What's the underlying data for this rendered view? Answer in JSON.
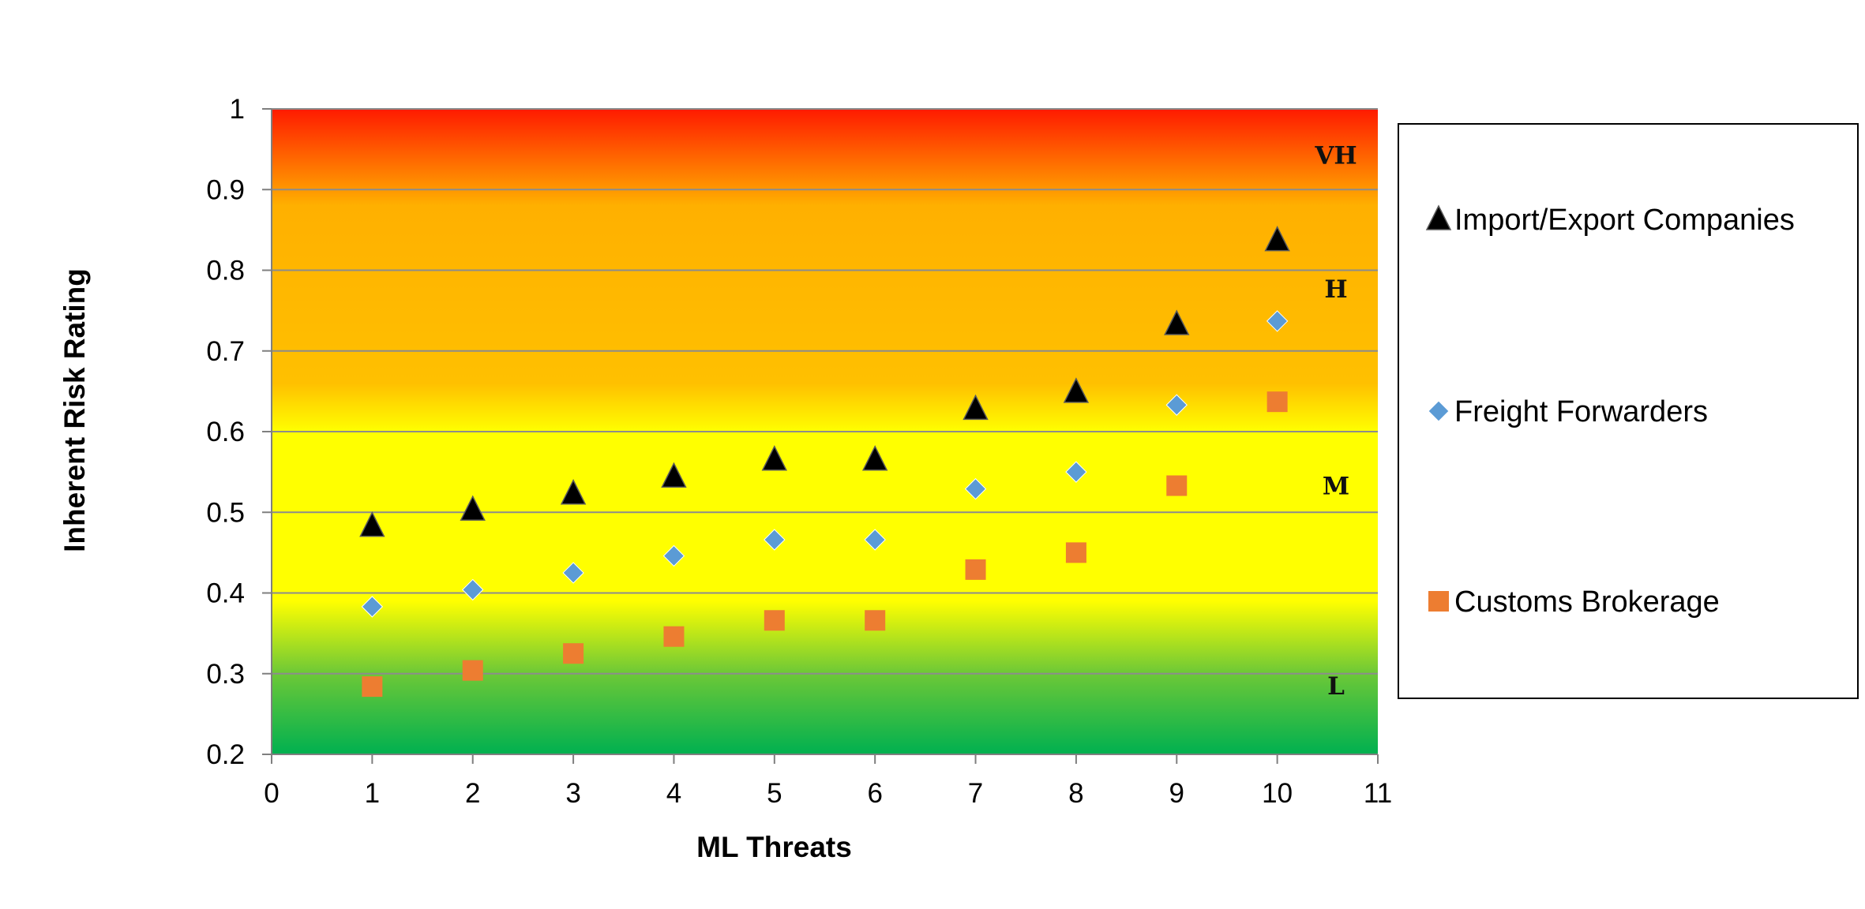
{
  "chart_data": {
    "type": "scatter",
    "title": "",
    "xlabel": "ML Threats",
    "ylabel": "Inherent Risk Rating",
    "xlim": [
      0,
      11
    ],
    "ylim": [
      0.2,
      1
    ],
    "x_ticks": [
      0,
      1,
      2,
      3,
      4,
      5,
      6,
      7,
      8,
      9,
      10,
      11
    ],
    "y_ticks": [
      0.2,
      0.3,
      0.4,
      0.5,
      0.6,
      0.7,
      0.8,
      0.9,
      1
    ],
    "y_tick_labels": [
      "0.2",
      "0.3",
      "0.4",
      "0.5",
      "0.6",
      "0.7",
      "0.8",
      "0.9",
      "1"
    ],
    "grid": "horizontal",
    "legend_position": "right",
    "background_gradient": [
      {
        "y": 1.0,
        "color": "#ff1a00"
      },
      {
        "y": 0.88,
        "color": "#ffb000"
      },
      {
        "y": 0.66,
        "color": "#ffc000"
      },
      {
        "y": 0.6,
        "color": "#ffff00"
      },
      {
        "y": 0.39,
        "color": "#ffff00"
      },
      {
        "y": 0.3,
        "color": "#6cc837"
      },
      {
        "y": 0.2,
        "color": "#00b050"
      }
    ],
    "zone_labels": [
      {
        "text": "VH",
        "y": 0.943
      },
      {
        "text": "H",
        "y": 0.777
      },
      {
        "text": "M",
        "y": 0.533
      },
      {
        "text": "L",
        "y": 0.285
      }
    ],
    "series": [
      {
        "name": "Import/Export Companies",
        "marker": "triangle",
        "color": "#000000",
        "x": [
          1,
          2,
          3,
          4,
          5,
          6,
          7,
          8,
          9,
          10
        ],
        "y": [
          0.483,
          0.503,
          0.523,
          0.544,
          0.565,
          0.565,
          0.628,
          0.649,
          0.733,
          0.837
        ]
      },
      {
        "name": "Freight Forwarders",
        "marker": "diamond",
        "color": "#5b9bd5",
        "x": [
          1,
          2,
          3,
          4,
          5,
          6,
          7,
          8,
          9,
          10
        ],
        "y": [
          0.383,
          0.404,
          0.425,
          0.446,
          0.466,
          0.466,
          0.529,
          0.55,
          0.633,
          0.737
        ]
      },
      {
        "name": "Customs Brokerage",
        "marker": "square",
        "color": "#ed7d31",
        "x": [
          1,
          2,
          3,
          4,
          5,
          6,
          7,
          8,
          9,
          10
        ],
        "y": [
          0.284,
          0.304,
          0.325,
          0.346,
          0.366,
          0.366,
          0.429,
          0.45,
          0.533,
          0.637
        ]
      }
    ]
  }
}
